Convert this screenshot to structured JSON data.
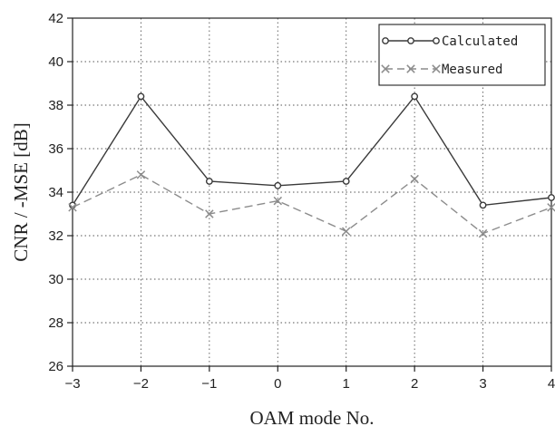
{
  "chart_data": {
    "type": "line",
    "xlabel": "OAM mode No.",
    "ylabel": "CNR / -MSE [dB]",
    "xlim": [
      -3,
      4
    ],
    "ylim": [
      26,
      42
    ],
    "x_ticks": [
      "−3",
      "−2",
      "−1",
      "0",
      "1",
      "2",
      "3",
      "4"
    ],
    "x_tick_values": [
      -3,
      -2,
      -1,
      0,
      1,
      2,
      3,
      4
    ],
    "y_ticks": [
      "26",
      "28",
      "30",
      "32",
      "34",
      "36",
      "38",
      "40",
      "42"
    ],
    "y_tick_values": [
      26,
      28,
      30,
      32,
      34,
      36,
      38,
      40,
      42
    ],
    "grid": true,
    "legend_position": "top-right",
    "x": [
      -3,
      -2,
      -1,
      0,
      1,
      2,
      3,
      4
    ],
    "series": [
      {
        "name": "Calculated",
        "values": [
          33.4,
          38.4,
          34.5,
          34.3,
          34.5,
          38.4,
          33.4,
          33.75
        ],
        "color": "#3a3a3a",
        "marker": "circle",
        "line": "solid"
      },
      {
        "name": "Measured",
        "values": [
          33.3,
          34.8,
          33.0,
          33.6,
          32.2,
          34.6,
          32.1,
          33.3
        ],
        "color": "#8c8c8c",
        "marker": "x",
        "line": "dashed"
      }
    ]
  }
}
